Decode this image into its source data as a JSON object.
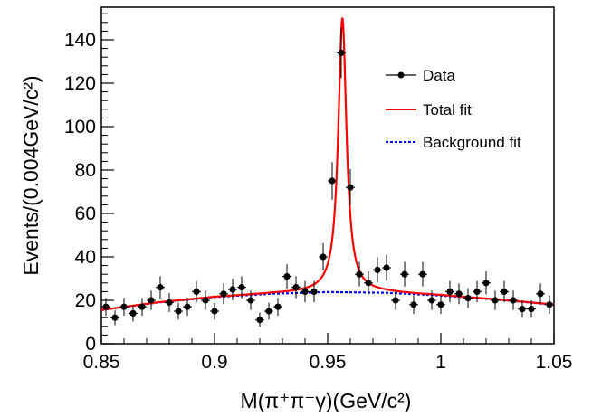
{
  "chart_data": {
    "type": "scatter",
    "xlabel": "M(π⁺π⁻γ)(GeV/c²)",
    "ylabel": "Events/(0.004GeV/c²)",
    "xlim": [
      0.85,
      1.05
    ],
    "ylim": [
      0,
      155
    ],
    "x_ticks": [
      "0.85",
      "0.9",
      "0.95",
      "1",
      "1.05"
    ],
    "y_ticks": [
      "0",
      "20",
      "40",
      "60",
      "80",
      "100",
      "120",
      "140"
    ],
    "grid": false,
    "legend_position": "top-right",
    "colors": {
      "data": "#000000",
      "total_fit": "#ff0000",
      "background_fit": "#0000ff"
    },
    "series": [
      {
        "name": "Data",
        "kind": "points_with_errors",
        "x": [
          0.852,
          0.856,
          0.86,
          0.864,
          0.868,
          0.872,
          0.876,
          0.88,
          0.884,
          0.888,
          0.892,
          0.896,
          0.9,
          0.904,
          0.908,
          0.912,
          0.916,
          0.92,
          0.924,
          0.928,
          0.932,
          0.936,
          0.94,
          0.944,
          0.948,
          0.952,
          0.956,
          0.96,
          0.964,
          0.968,
          0.972,
          0.976,
          0.98,
          0.984,
          0.988,
          0.992,
          0.996,
          1.0,
          1.004,
          1.008,
          1.012,
          1.016,
          1.02,
          1.024,
          1.028,
          1.032,
          1.036,
          1.04,
          1.044,
          1.048
        ],
        "y": [
          17,
          12,
          17,
          14,
          17,
          20,
          26,
          19,
          15,
          17,
          24,
          20,
          15,
          23,
          25,
          26,
          20,
          11,
          15,
          17,
          31,
          26,
          24,
          24,
          40,
          75,
          134,
          72,
          32,
          28,
          34,
          35,
          20,
          32,
          18,
          32,
          20,
          18,
          24,
          23,
          21,
          24,
          28,
          20,
          24,
          20,
          16,
          16,
          23,
          18
        ]
      },
      {
        "name": "Total fit",
        "kind": "line",
        "peak_x": 0.9565,
        "peak_y": 150
      },
      {
        "name": "Background fit",
        "kind": "dashed_line",
        "x": [
          0.85,
          0.875,
          0.9,
          0.925,
          0.95,
          0.975,
          1.0,
          1.025,
          1.05
        ],
        "y": [
          15.5,
          19.0,
          21.5,
          23.0,
          23.8,
          23.5,
          22.2,
          20.3,
          18.0
        ]
      }
    ]
  }
}
